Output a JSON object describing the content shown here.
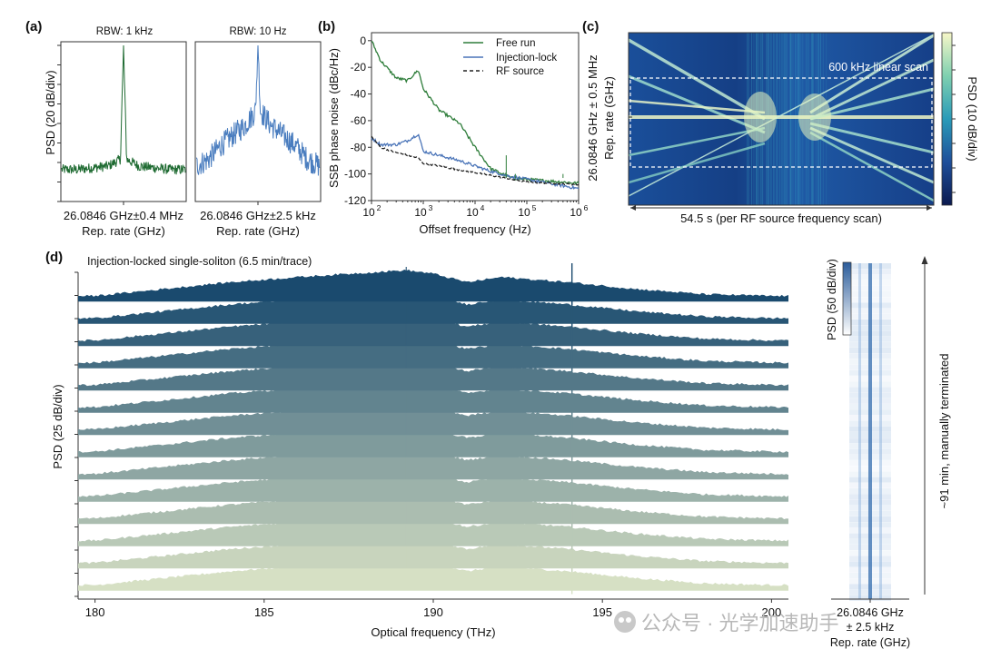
{
  "panels": {
    "a": {
      "label": "(a)",
      "ylabel": "PSD (20 dB/div)",
      "left": {
        "title": "RBW: 1 kHz",
        "xlabel": "26.0846 GHz±0.4 MHz",
        "xunit": "Rep. rate (GHz)",
        "color": "#1f6b32"
      },
      "right": {
        "title": "RBW: 10 Hz",
        "xlabel": "26.0846 GHz±2.5 kHz",
        "xunit": "Rep. rate (GHz)",
        "color": "#4a7dbf"
      }
    },
    "b": {
      "label": "(b)",
      "ylabel": "SSB phase noise (dBc/Hz)",
      "xlabel": "Offset frequency (Hz)",
      "yticks": [
        "0",
        "-20",
        "-40",
        "-60",
        "-80",
        "-100",
        "-120"
      ],
      "xticks": [
        "10",
        "10",
        "10",
        "10",
        "10"
      ],
      "xexp": [
        "2",
        "3",
        "4",
        "5",
        "6"
      ],
      "legend": [
        "Free run",
        "Injection-lock",
        "RF source"
      ],
      "colors": [
        "#2e7d3a",
        "#4a74b8",
        "#222222"
      ]
    },
    "c": {
      "label": "(c)",
      "ylabel1": "26.0846 GHz ± 0.5 MHz",
      "ylabel2": "Rep. rate (GHz)",
      "annotation": "600 kHz linear scan",
      "xlabel": "54.5 s (per RF source frequency scan)",
      "colorbar": "PSD (10 dB/div)"
    },
    "d": {
      "label": "(d)",
      "title": "Injection-locked single-soliton (6.5 min/trace)",
      "ylabel": "PSD (25 dB/div)",
      "xlabel": "Optical frequency (THz)",
      "xticks": [
        "180",
        "185",
        "190",
        "195",
        "200"
      ],
      "side_colorbar": "PSD (50 dB/div)",
      "side_xlabel1": "26.0846 GHz",
      "side_xlabel2": "± 2.5 kHz",
      "side_xunit": "Rep. rate (GHz)",
      "arrow_label": "~91 min, manually terminated"
    }
  },
  "watermark": "公众号 · 光学加速助手",
  "chart_data": [
    {
      "type": "line",
      "title": "RBW: 1 kHz",
      "xlabel": "26.0846 GHz±0.4 MHz",
      "ylabel": "PSD (20 dB/div)",
      "x": [
        -0.4,
        -0.3,
        -0.2,
        -0.1,
        -0.02,
        0,
        0.02,
        0.1,
        0.2,
        0.3,
        0.4
      ],
      "series": [
        {
          "values": [
            -72,
            -72,
            -71,
            -70,
            -66,
            0,
            -66,
            -70,
            -71,
            -72,
            -72
          ]
        }
      ]
    },
    {
      "type": "line",
      "title": "RBW: 10 Hz",
      "xlabel": "26.0846 GHz±2.5 kHz",
      "ylabel": "PSD (20 dB/div)",
      "x": [
        -2.5,
        -2.0,
        -1.5,
        -1.0,
        -0.5,
        -0.1,
        0,
        0.1,
        0.5,
        1.0,
        1.5,
        2.0,
        2.5
      ],
      "series": [
        {
          "values": [
            -70,
            -66,
            -58,
            -52,
            -46,
            -38,
            0,
            -38,
            -46,
            -52,
            -58,
            -66,
            -70
          ]
        }
      ]
    },
    {
      "type": "line",
      "xlabel": "Offset frequency (Hz)",
      "ylabel": "SSB phase noise (dBc/Hz)",
      "xscale": "log",
      "xlim": [
        100,
        1000000
      ],
      "ylim": [
        -120,
        0
      ],
      "series": [
        {
          "name": "Free run",
          "x": [
            100,
            150,
            300,
            500,
            800,
            1000,
            2000,
            5000,
            10000,
            20000,
            50000,
            100000,
            1000000
          ],
          "values": [
            0,
            -15,
            -28,
            -30,
            -22,
            -36,
            -52,
            -62,
            -80,
            -96,
            -103,
            -104,
            -107
          ]
        },
        {
          "name": "Injection-lock",
          "x": [
            100,
            150,
            300,
            500,
            800,
            1000,
            2000,
            5000,
            10000,
            20000,
            50000,
            100000,
            1000000
          ],
          "values": [
            -73,
            -78,
            -78,
            -75,
            -70,
            -83,
            -86,
            -90,
            -94,
            -98,
            -102,
            -104,
            -111
          ]
        },
        {
          "name": "RF source",
          "x": [
            100,
            150,
            300,
            500,
            800,
            1000,
            2000,
            5000,
            10000,
            20000,
            50000,
            100000,
            1000000
          ],
          "values": [
            -72,
            -80,
            -84,
            -86,
            -88,
            -92,
            -94,
            -97,
            -99,
            -101,
            -104,
            -106,
            -108
          ]
        }
      ]
    },
    {
      "type": "heatmap",
      "title": "600 kHz linear scan",
      "xlabel": "54.5 s (per RF source frequency scan)",
      "ylabel": "26.0846 GHz ± 0.5 MHz",
      "colorbar": "PSD (10 dB/div)"
    },
    {
      "type": "area",
      "title": "Injection-locked single-soliton (6.5 min/trace)",
      "xlabel": "Optical frequency (THz)",
      "ylabel": "PSD (25 dB/div)",
      "xlim": [
        179.5,
        200.5
      ],
      "x": [
        180,
        182,
        184,
        186,
        188,
        189.2,
        190,
        191,
        192,
        194,
        196,
        198,
        200
      ],
      "series": [
        {
          "values": [
            -30,
            -22,
            -14,
            -8,
            -3,
            0,
            -4,
            -14,
            -8,
            -14,
            -22,
            -28,
            -30
          ]
        }
      ],
      "traces": 14
    }
  ]
}
